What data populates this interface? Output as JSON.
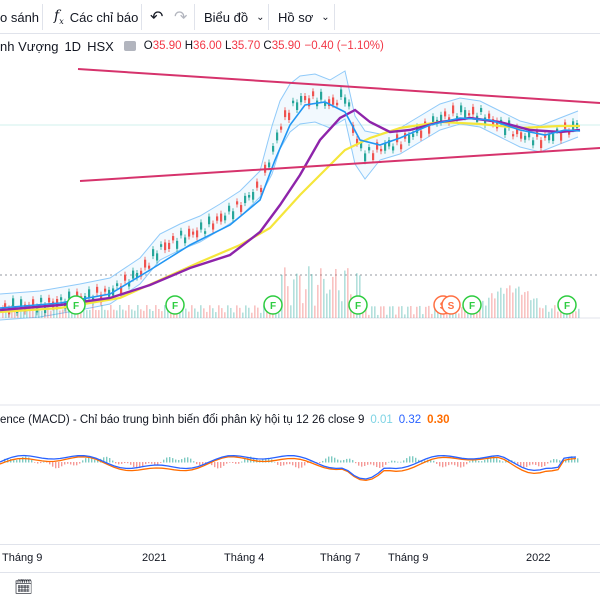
{
  "toolbar": {
    "compare_label": "o sánh",
    "indicators_icon": "fx-icon",
    "indicators_label": "Các chỉ báo",
    "undo_icon": "undo-icon",
    "redo_icon": "redo-icon",
    "chart_label": "Biểu đồ",
    "profile_label": "Hồ sơ"
  },
  "legend": {
    "symbol": "nh Vượng",
    "timeframe": "1D",
    "exchange": "HSX",
    "open_label": "O",
    "open": "35.90",
    "high_label": "H",
    "high": "36.00",
    "low_label": "L",
    "low": "35.70",
    "close_label": "C",
    "close": "35.90",
    "change": "−0.40 (−1.10%)"
  },
  "macd": {
    "label": "ence (MACD) - Chỉ báo trung bình biến đổi phân kỳ hội tụ 12 26 close 9",
    "hist": "0.01",
    "macd": "0.32",
    "signal": "0.30"
  },
  "events": [
    {
      "label": "F"
    },
    {
      "label": "F"
    },
    {
      "label": "F"
    },
    {
      "label": "F"
    },
    {
      "label": "S"
    },
    {
      "label": "S"
    },
    {
      "label": "F"
    },
    {
      "label": "F"
    }
  ],
  "time_axis": [
    "Tháng 9",
    "2021",
    "Tháng 4",
    "Tháng 7",
    "Tháng 9",
    "2022"
  ],
  "colors": {
    "trendline": "#d6336c",
    "ema_fast": "#2196f3",
    "ema_slow": "#8e24aa",
    "ma_long": "#f5e63b",
    "bollinger": "#90caf9",
    "up": "#26a69a",
    "down": "#ef5350",
    "event_green": "#2ecc40",
    "event_orange": "#ff7043"
  },
  "bottom": {
    "calendar_icon": "calendar-goto-icon"
  }
}
